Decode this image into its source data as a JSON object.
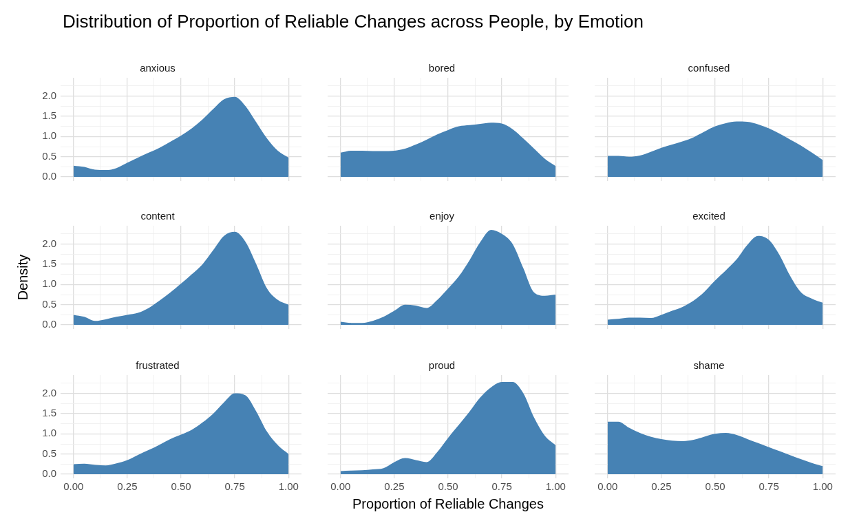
{
  "chart_data": [
    {
      "type": "other",
      "title": "Distribution of Proportion of Reliable Changes across People, by Emotion"
    },
    {
      "type": "area",
      "title": "anxious",
      "color": "#4682b4",
      "grid": true,
      "tick_labels": "y",
      "xlim": [
        -0.06,
        1.06
      ],
      "ylim": [
        -0.1,
        2.45
      ],
      "xticks": [
        0,
        0.125,
        0.25,
        0.375,
        0.5,
        0.625,
        0.75,
        0.875,
        1
      ],
      "yticks": [
        {
          "value": 0,
          "label": "0.0"
        },
        {
          "value": 0.25,
          "label": null
        },
        {
          "value": 0.5,
          "label": "0.5"
        },
        {
          "value": 0.75,
          "label": null
        },
        {
          "value": 1,
          "label": "1.0"
        },
        {
          "value": 1.25,
          "label": null
        },
        {
          "value": 1.5,
          "label": "1.5"
        },
        {
          "value": 1.75,
          "label": null
        },
        {
          "value": 2,
          "label": "2.0"
        },
        {
          "value": 2.25,
          "label": null
        }
      ],
      "x": [
        0,
        0.05,
        0.1,
        0.15,
        0.2,
        0.25,
        0.3,
        0.35,
        0.4,
        0.45,
        0.5,
        0.55,
        0.6,
        0.65,
        0.7,
        0.75,
        0.8,
        0.85,
        0.9,
        0.95,
        1
      ],
      "values": [
        0.28,
        0.25,
        0.18,
        0.17,
        0.22,
        0.35,
        0.48,
        0.6,
        0.72,
        0.87,
        1.02,
        1.2,
        1.42,
        1.68,
        1.92,
        1.98,
        1.75,
        1.35,
        0.95,
        0.65,
        0.48
      ]
    },
    {
      "type": "area",
      "title": "bored",
      "color": "#4682b4",
      "grid": true,
      "tick_labels": false,
      "xlim": [
        -0.06,
        1.06
      ],
      "ylim": [
        -0.1,
        2.45
      ],
      "xticks": [
        0,
        0.125,
        0.25,
        0.375,
        0.5,
        0.625,
        0.75,
        0.875,
        1
      ],
      "yticks": [
        0,
        0.25,
        0.5,
        0.75,
        1,
        1.25,
        1.5,
        1.75,
        2,
        2.25
      ],
      "x": [
        0,
        0.05,
        0.1,
        0.15,
        0.2,
        0.25,
        0.3,
        0.35,
        0.4,
        0.45,
        0.5,
        0.55,
        0.6,
        0.65,
        0.7,
        0.75,
        0.8,
        0.85,
        0.9,
        0.95,
        1
      ],
      "values": [
        0.6,
        0.65,
        0.65,
        0.64,
        0.64,
        0.65,
        0.7,
        0.8,
        0.92,
        1.05,
        1.16,
        1.25,
        1.28,
        1.31,
        1.34,
        1.32,
        1.18,
        0.95,
        0.7,
        0.45,
        0.27
      ]
    },
    {
      "type": "area",
      "title": "confused",
      "color": "#4682b4",
      "grid": true,
      "tick_labels": false,
      "xlim": [
        -0.06,
        1.06
      ],
      "ylim": [
        -0.1,
        2.45
      ],
      "xticks": [
        0,
        0.125,
        0.25,
        0.375,
        0.5,
        0.625,
        0.75,
        0.875,
        1
      ],
      "yticks": [
        0,
        0.25,
        0.5,
        0.75,
        1,
        1.25,
        1.5,
        1.75,
        2,
        2.25
      ],
      "x": [
        0,
        0.05,
        0.1,
        0.15,
        0.2,
        0.25,
        0.3,
        0.35,
        0.4,
        0.45,
        0.5,
        0.55,
        0.6,
        0.65,
        0.7,
        0.75,
        0.8,
        0.85,
        0.9,
        0.95,
        1
      ],
      "values": [
        0.52,
        0.52,
        0.5,
        0.53,
        0.62,
        0.72,
        0.8,
        0.88,
        0.98,
        1.12,
        1.25,
        1.33,
        1.37,
        1.36,
        1.3,
        1.2,
        1.07,
        0.92,
        0.77,
        0.6,
        0.42
      ]
    },
    {
      "type": "area",
      "title": "content",
      "ylabel": "Density",
      "color": "#4682b4",
      "grid": true,
      "tick_labels": "y",
      "xlim": [
        -0.06,
        1.06
      ],
      "ylim": [
        -0.1,
        2.45
      ],
      "xticks": [
        0,
        0.125,
        0.25,
        0.375,
        0.5,
        0.625,
        0.75,
        0.875,
        1
      ],
      "yticks": [
        {
          "value": 0,
          "label": "0.0"
        },
        {
          "value": 0.25,
          "label": null
        },
        {
          "value": 0.5,
          "label": "0.5"
        },
        {
          "value": 0.75,
          "label": null
        },
        {
          "value": 1,
          "label": "1.0"
        },
        {
          "value": 1.25,
          "label": null
        },
        {
          "value": 1.5,
          "label": "1.5"
        },
        {
          "value": 1.75,
          "label": null
        },
        {
          "value": 2,
          "label": "2.0"
        },
        {
          "value": 2.25,
          "label": null
        }
      ],
      "x": [
        0,
        0.05,
        0.1,
        0.15,
        0.2,
        0.25,
        0.3,
        0.35,
        0.4,
        0.45,
        0.5,
        0.55,
        0.6,
        0.65,
        0.7,
        0.75,
        0.8,
        0.85,
        0.9,
        0.95,
        1
      ],
      "values": [
        0.25,
        0.2,
        0.1,
        0.14,
        0.2,
        0.25,
        0.3,
        0.42,
        0.6,
        0.8,
        1.02,
        1.25,
        1.5,
        1.85,
        2.2,
        2.3,
        2.05,
        1.5,
        0.9,
        0.62,
        0.5
      ]
    },
    {
      "type": "area",
      "title": "enjoy",
      "color": "#4682b4",
      "grid": true,
      "tick_labels": false,
      "xlim": [
        -0.06,
        1.06
      ],
      "ylim": [
        -0.1,
        2.45
      ],
      "xticks": [
        0,
        0.125,
        0.25,
        0.375,
        0.5,
        0.625,
        0.75,
        0.875,
        1
      ],
      "yticks": [
        0,
        0.25,
        0.5,
        0.75,
        1,
        1.25,
        1.5,
        1.75,
        2,
        2.25
      ],
      "x": [
        0,
        0.05,
        0.1,
        0.15,
        0.2,
        0.25,
        0.3,
        0.35,
        0.4,
        0.45,
        0.5,
        0.55,
        0.6,
        0.65,
        0.7,
        0.75,
        0.8,
        0.85,
        0.9,
        0.95,
        1
      ],
      "values": [
        0.08,
        0.05,
        0.05,
        0.1,
        0.2,
        0.35,
        0.5,
        0.48,
        0.42,
        0.62,
        0.9,
        1.2,
        1.6,
        2.05,
        2.35,
        2.25,
        2.0,
        1.4,
        0.8,
        0.72,
        0.75
      ]
    },
    {
      "type": "area",
      "title": "excited",
      "color": "#4682b4",
      "grid": true,
      "tick_labels": false,
      "xlim": [
        -0.06,
        1.06
      ],
      "ylim": [
        -0.1,
        2.45
      ],
      "xticks": [
        0,
        0.125,
        0.25,
        0.375,
        0.5,
        0.625,
        0.75,
        0.875,
        1
      ],
      "yticks": [
        0,
        0.25,
        0.5,
        0.75,
        1,
        1.25,
        1.5,
        1.75,
        2,
        2.25
      ],
      "x": [
        0,
        0.05,
        0.1,
        0.15,
        0.2,
        0.25,
        0.3,
        0.35,
        0.4,
        0.45,
        0.5,
        0.55,
        0.6,
        0.65,
        0.7,
        0.75,
        0.8,
        0.85,
        0.9,
        0.95,
        1
      ],
      "values": [
        0.13,
        0.15,
        0.18,
        0.18,
        0.17,
        0.25,
        0.35,
        0.45,
        0.6,
        0.82,
        1.1,
        1.35,
        1.62,
        1.98,
        2.2,
        2.1,
        1.72,
        1.2,
        0.8,
        0.65,
        0.55
      ]
    },
    {
      "type": "area",
      "title": "frustrated",
      "color": "#4682b4",
      "grid": true,
      "xlim": [
        -0.06,
        1.06
      ],
      "ylim": [
        -0.1,
        2.45
      ],
      "xticks": [
        {
          "value": 0,
          "label": "0.00"
        },
        {
          "value": 0.125,
          "label": null
        },
        {
          "value": 0.25,
          "label": "0.25"
        },
        {
          "value": 0.375,
          "label": null
        },
        {
          "value": 0.5,
          "label": "0.50"
        },
        {
          "value": 0.625,
          "label": null
        },
        {
          "value": 0.75,
          "label": "0.75"
        },
        {
          "value": 0.875,
          "label": null
        },
        {
          "value": 1,
          "label": "1.00"
        }
      ],
      "yticks": [
        {
          "value": 0,
          "label": "0.0"
        },
        {
          "value": 0.25,
          "label": null
        },
        {
          "value": 0.5,
          "label": "0.5"
        },
        {
          "value": 0.75,
          "label": null
        },
        {
          "value": 1,
          "label": "1.0"
        },
        {
          "value": 1.25,
          "label": null
        },
        {
          "value": 1.5,
          "label": "1.5"
        },
        {
          "value": 1.75,
          "label": null
        },
        {
          "value": 2,
          "label": "2.0"
        },
        {
          "value": 2.25,
          "label": null
        }
      ],
      "x": [
        0,
        0.05,
        0.1,
        0.15,
        0.2,
        0.25,
        0.3,
        0.35,
        0.4,
        0.45,
        0.5,
        0.55,
        0.6,
        0.65,
        0.7,
        0.75,
        0.8,
        0.85,
        0.9,
        0.95,
        1
      ],
      "values": [
        0.25,
        0.26,
        0.23,
        0.22,
        0.27,
        0.35,
        0.48,
        0.6,
        0.73,
        0.87,
        0.98,
        1.1,
        1.28,
        1.5,
        1.78,
        2.0,
        1.95,
        1.55,
        1.05,
        0.72,
        0.5
      ]
    },
    {
      "type": "area",
      "title": "proud",
      "xlabel": "Proportion of Reliable Changes",
      "color": "#4682b4",
      "grid": true,
      "tick_labels": "x",
      "xlim": [
        -0.06,
        1.06
      ],
      "ylim": [
        -0.1,
        2.45
      ],
      "xticks": [
        {
          "value": 0,
          "label": "0.00"
        },
        {
          "value": 0.125,
          "label": null
        },
        {
          "value": 0.25,
          "label": "0.25"
        },
        {
          "value": 0.375,
          "label": null
        },
        {
          "value": 0.5,
          "label": "0.50"
        },
        {
          "value": 0.625,
          "label": null
        },
        {
          "value": 0.75,
          "label": "0.75"
        },
        {
          "value": 0.875,
          "label": null
        },
        {
          "value": 1,
          "label": "1.00"
        }
      ],
      "yticks": [
        0,
        0.25,
        0.5,
        0.75,
        1,
        1.25,
        1.5,
        1.75,
        2,
        2.25
      ],
      "x": [
        0,
        0.05,
        0.1,
        0.15,
        0.2,
        0.25,
        0.3,
        0.35,
        0.4,
        0.45,
        0.5,
        0.55,
        0.6,
        0.65,
        0.7,
        0.75,
        0.8,
        0.85,
        0.9,
        0.95,
        1
      ],
      "values": [
        0.08,
        0.09,
        0.1,
        0.12,
        0.15,
        0.3,
        0.4,
        0.35,
        0.3,
        0.55,
        0.9,
        1.22,
        1.55,
        1.9,
        2.15,
        2.28,
        2.28,
        2.0,
        1.4,
        0.95,
        0.72
      ]
    },
    {
      "type": "area",
      "title": "shame",
      "color": "#4682b4",
      "grid": true,
      "tick_labels": "x",
      "xlim": [
        -0.06,
        1.06
      ],
      "ylim": [
        -0.1,
        2.45
      ],
      "xticks": [
        {
          "value": 0,
          "label": "0.00"
        },
        {
          "value": 0.125,
          "label": null
        },
        {
          "value": 0.25,
          "label": "0.25"
        },
        {
          "value": 0.375,
          "label": null
        },
        {
          "value": 0.5,
          "label": "0.50"
        },
        {
          "value": 0.625,
          "label": null
        },
        {
          "value": 0.75,
          "label": "0.75"
        },
        {
          "value": 0.875,
          "label": null
        },
        {
          "value": 1,
          "label": "1.00"
        }
      ],
      "yticks": [
        0,
        0.25,
        0.5,
        0.75,
        1,
        1.25,
        1.5,
        1.75,
        2,
        2.25
      ],
      "x": [
        0,
        0.05,
        0.1,
        0.15,
        0.2,
        0.25,
        0.3,
        0.35,
        0.4,
        0.45,
        0.5,
        0.55,
        0.6,
        0.65,
        0.7,
        0.75,
        0.8,
        0.85,
        0.9,
        0.95,
        1
      ],
      "values": [
        1.3,
        1.3,
        1.15,
        1.02,
        0.93,
        0.87,
        0.83,
        0.82,
        0.85,
        0.93,
        1.0,
        1.02,
        0.97,
        0.87,
        0.77,
        0.67,
        0.57,
        0.47,
        0.37,
        0.28,
        0.2
      ]
    }
  ]
}
